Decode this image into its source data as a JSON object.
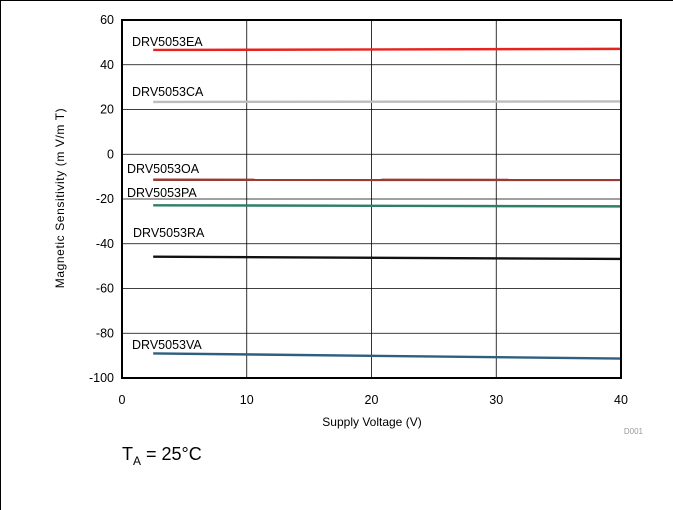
{
  "chart_data": {
    "type": "line",
    "title": "",
    "xlabel": "Supply Voltage (V)",
    "ylabel": "Magnetic Sensitivity (m V/m T)",
    "xlim": [
      0,
      40
    ],
    "ylim": [
      -100,
      60
    ],
    "xticks": [
      0,
      10,
      20,
      30,
      40
    ],
    "yticks": [
      60,
      40,
      20,
      0,
      -20,
      -40,
      -60,
      -80,
      -100
    ],
    "grid": true,
    "series": [
      {
        "name": "DRV5053EA",
        "color": "#e8231e",
        "x": [
          2.5,
          40
        ],
        "y": [
          46.6,
          47.1
        ]
      },
      {
        "name": "DRV5053CA",
        "color": "#bdbdbd",
        "x": [
          2.5,
          40
        ],
        "y": [
          23.4,
          23.6
        ]
      },
      {
        "name": "DRV5053OA",
        "color": "#9b3a34",
        "x": [
          2.5,
          40
        ],
        "y": [
          -11.4,
          -11.5
        ]
      },
      {
        "name": "DRV5053PA",
        "color": "#2f7f68",
        "x": [
          2.5,
          40
        ],
        "y": [
          -22.8,
          -23.3
        ]
      },
      {
        "name": "DRV5053RA",
        "color": "#111111",
        "x": [
          2.5,
          40
        ],
        "y": [
          -45.8,
          -46.8
        ]
      },
      {
        "name": "DRV5053VA",
        "color": "#2f5f7f",
        "x": [
          2.5,
          40
        ],
        "y": [
          -89.0,
          -91.3
        ]
      }
    ],
    "code": "D001"
  },
  "condition": {
    "symbol": "T",
    "subscript": "A",
    "value": " = 25°C"
  }
}
